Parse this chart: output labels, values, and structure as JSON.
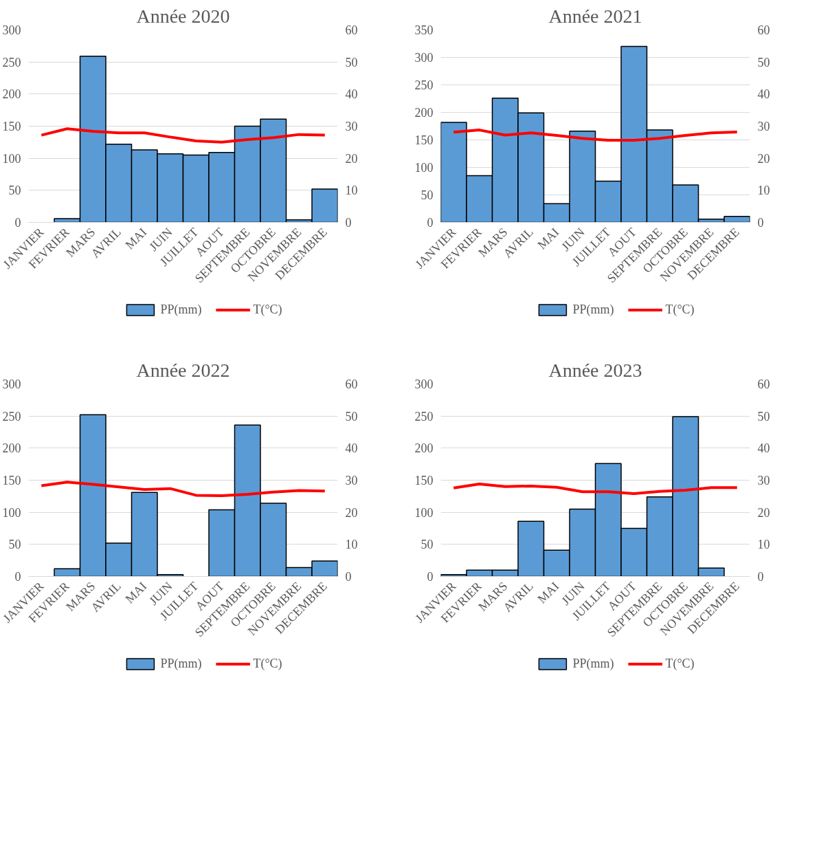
{
  "chart_data": [
    {
      "type": "bar",
      "title": "Année 2020",
      "categories": [
        "JANVIER",
        "FEVRIER",
        "MARS",
        "AVRIL",
        "MAI",
        "JUIN",
        "JUILLET",
        "AOUT",
        "SEPTEMBRE",
        "OCTOBRE",
        "NOVEMBRE",
        "DECEMBRE"
      ],
      "series": [
        {
          "name": "PP(mm)",
          "color": "#5b9bd5",
          "values": [
            null,
            6,
            259,
            122,
            113,
            107,
            105,
            109,
            150,
            161,
            4,
            52
          ]
        },
        {
          "name": "T(°C)",
          "type": "line",
          "axis": "y2",
          "color": "#ff0000",
          "values": [
            27.2,
            29.2,
            28.4,
            27.9,
            27.9,
            26.6,
            25.4,
            25.0,
            25.8,
            26.4,
            27.4,
            27.2
          ]
        }
      ],
      "ylim": [
        0,
        300
      ],
      "yticks": [
        0,
        50,
        100,
        150,
        200,
        250,
        300
      ],
      "y2lim": [
        0,
        60
      ],
      "y2ticks": [
        0,
        10,
        20,
        30,
        40,
        50,
        60
      ],
      "grid": "y",
      "legend": "bottom"
    },
    {
      "type": "bar",
      "title": "Année 2021",
      "categories": [
        "JANVIER",
        "FEVRIER",
        "MARS",
        "AVRIL",
        "MAI",
        "JUIN",
        "JUILLET",
        "AOUT",
        "SEPTEMBRE",
        "OCTOBRE",
        "NOVEMBRE",
        "DECEMBRE"
      ],
      "series": [
        {
          "name": "PP(mm)",
          "color": "#5b9bd5",
          "values": [
            182,
            85,
            226,
            199,
            34,
            166,
            75,
            320,
            168,
            68,
            6,
            11
          ]
        },
        {
          "name": "T(°C)",
          "type": "line",
          "axis": "y2",
          "color": "#ff0000",
          "values": [
            28.1,
            28.8,
            27.2,
            27.9,
            27.1,
            26.2,
            25.6,
            25.6,
            26.2,
            27.1,
            27.9,
            28.2
          ]
        }
      ],
      "ylim": [
        0,
        350
      ],
      "yticks": [
        0,
        50,
        100,
        150,
        200,
        250,
        300,
        350
      ],
      "y2lim": [
        0,
        60
      ],
      "y2ticks": [
        0,
        10,
        20,
        30,
        40,
        50,
        60
      ],
      "grid": "y",
      "legend": "bottom"
    },
    {
      "type": "bar",
      "title": "Année 2022",
      "categories": [
        "JANVIER",
        "FEVRIER",
        "MARS",
        "AVRIL",
        "MAI",
        "JUIN",
        "JUILLET",
        "AOUT",
        "SEPTEMBRE",
        "OCTOBRE",
        "NOVEMBRE",
        "DECEMBRE"
      ],
      "series": [
        {
          "name": "PP(mm)",
          "color": "#5b9bd5",
          "values": [
            null,
            12,
            252,
            52,
            131,
            3,
            null,
            104,
            236,
            114,
            14,
            24
          ]
        },
        {
          "name": "T(°C)",
          "type": "line",
          "axis": "y2",
          "color": "#ff0000",
          "values": [
            28.3,
            29.4,
            28.7,
            27.9,
            27.1,
            27.4,
            25.3,
            25.2,
            25.6,
            26.3,
            26.8,
            26.6
          ]
        }
      ],
      "ylim": [
        0,
        300
      ],
      "yticks": [
        0,
        50,
        100,
        150,
        200,
        250,
        300
      ],
      "y2lim": [
        0,
        60
      ],
      "y2ticks": [
        0,
        10,
        20,
        30,
        40,
        50,
        60
      ],
      "grid": "y",
      "legend": "bottom"
    },
    {
      "type": "bar",
      "title": "Année 2023",
      "categories": [
        "JANVIER",
        "FEVRIER",
        "MARS",
        "AVRIL",
        "MAI",
        "JUIN",
        "JUILLET",
        "AOUT",
        "SEPTEMBRE",
        "OCTOBRE",
        "NOVEMBRE",
        "DECEMBRE"
      ],
      "series": [
        {
          "name": "PP(mm)",
          "color": "#5b9bd5",
          "values": [
            3,
            10,
            10,
            86,
            41,
            105,
            176,
            75,
            124,
            249,
            13,
            null
          ]
        },
        {
          "name": "T(°C)",
          "type": "line",
          "axis": "y2",
          "color": "#ff0000",
          "values": [
            27.6,
            28.8,
            28.0,
            28.2,
            27.8,
            26.4,
            26.4,
            25.8,
            26.5,
            26.9,
            27.7,
            27.7
          ]
        }
      ],
      "ylim": [
        0,
        300
      ],
      "yticks": [
        0,
        50,
        100,
        150,
        200,
        250,
        300
      ],
      "y2lim": [
        0,
        60
      ],
      "y2ticks": [
        0,
        10,
        20,
        30,
        40,
        50,
        60
      ],
      "grid": "y",
      "legend": "bottom"
    }
  ]
}
